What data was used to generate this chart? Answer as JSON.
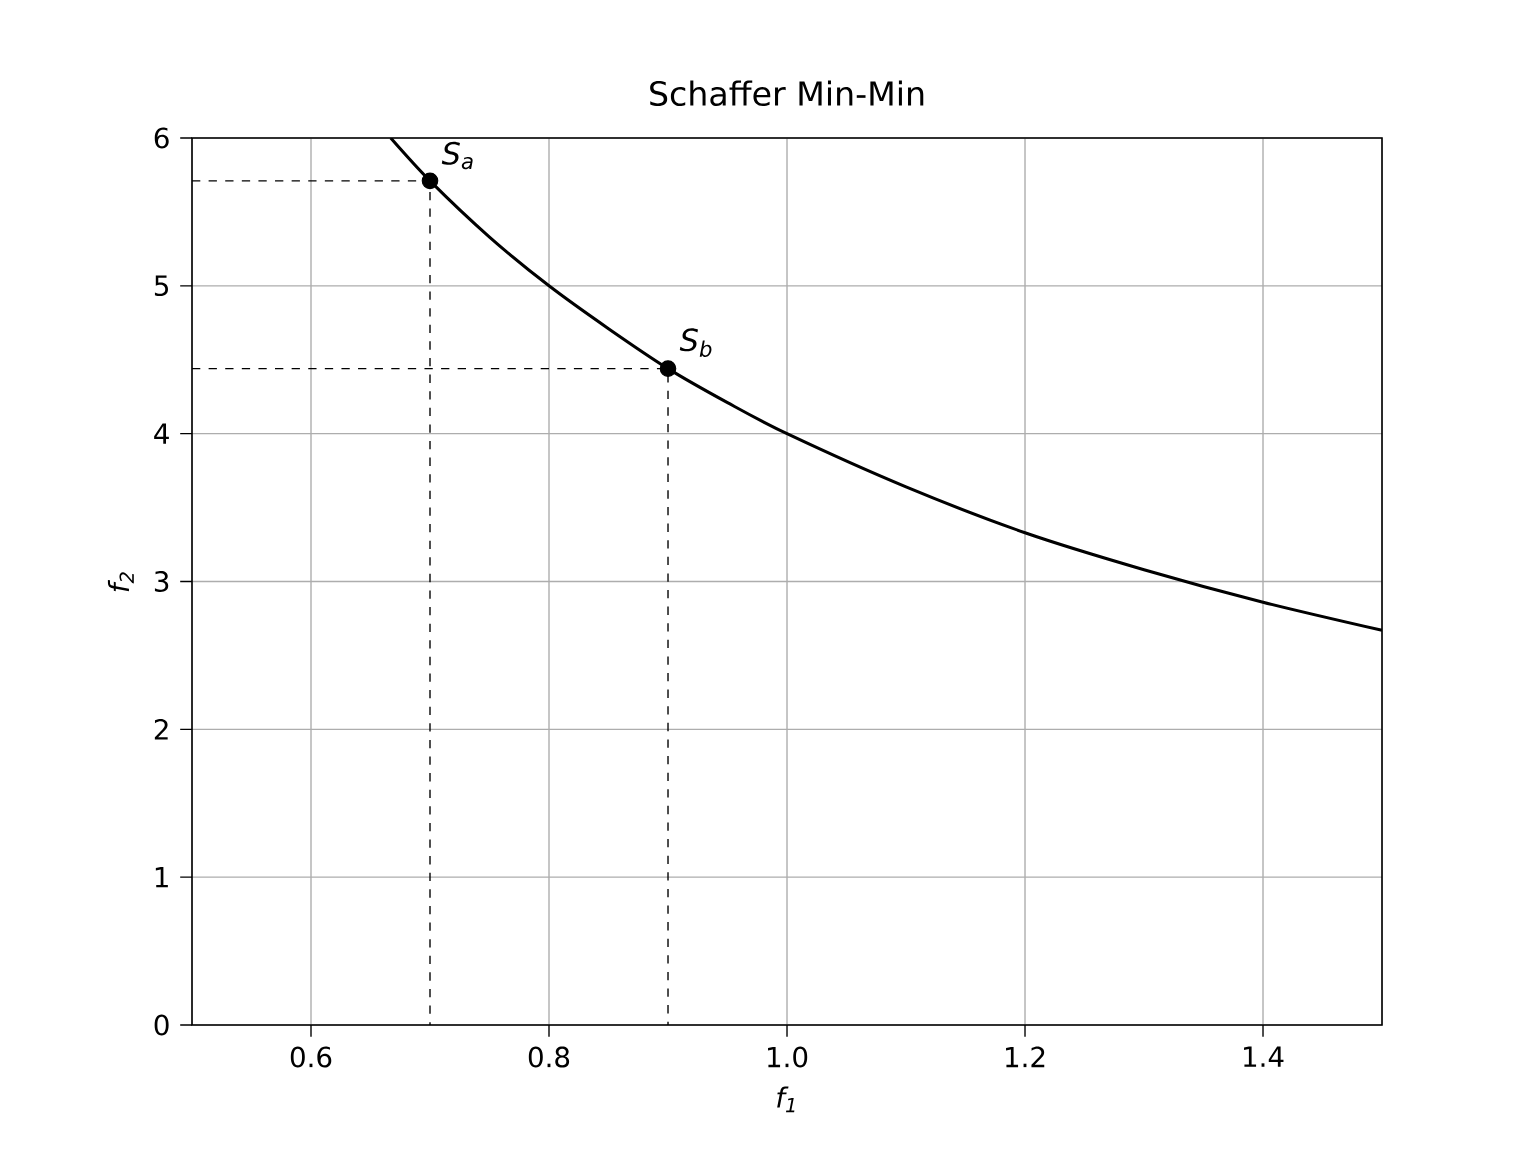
{
  "chart_data": {
    "type": "line",
    "title": "Schaffer Min-Min",
    "xlabel": "f$_{1}$",
    "ylabel": "f$_{2}$",
    "xlim": [
      0.5,
      1.5
    ],
    "ylim": [
      0,
      6
    ],
    "xticks": [
      0.6,
      0.8,
      {
        "value": 1.0,
        "label": "1.0"
      },
      1.2,
      1.4
    ],
    "yticks": [
      0,
      1,
      2,
      3,
      4,
      5,
      6
    ],
    "grid": true,
    "series": [
      {
        "color": "#000000",
        "line_style": "solid",
        "x": [
          0.667,
          0.7,
          0.75,
          0.8,
          0.85,
          0.9,
          0.95,
          1.0,
          1.1,
          1.2,
          1.3,
          1.4,
          1.5
        ],
        "values": [
          6.0,
          5.71,
          5.33,
          5.0,
          4.71,
          4.44,
          4.21,
          4.0,
          3.64,
          3.33,
          3.08,
          2.86,
          2.67
        ]
      },
      {
        "color": "#000000",
        "line_style": "dashed",
        "x": [
          0.5,
          0.7,
          0.7
        ],
        "values": [
          5.71,
          5.71,
          0
        ]
      },
      {
        "color": "#000000",
        "line_style": "dashed",
        "x": [
          0.5,
          0.9,
          0.9
        ],
        "values": [
          4.44,
          4.44,
          0
        ]
      },
      {
        "type": "scatter",
        "color": "#000000",
        "marker": "circle",
        "x": [
          0.7,
          0.9
        ],
        "values": [
          5.71,
          4.44
        ]
      }
    ],
    "annotations": [
      {
        "text": "S$_{a}$",
        "x": 0.7,
        "y": 5.71
      },
      {
        "text": "S$_{b}$",
        "x": 0.9,
        "y": 4.44
      }
    ]
  }
}
